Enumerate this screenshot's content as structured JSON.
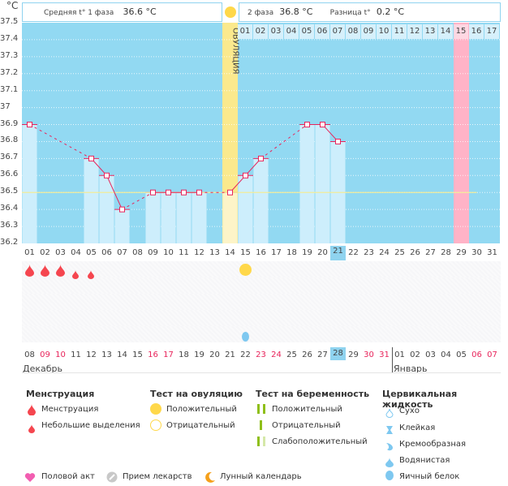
{
  "chart_data": {
    "type": "bar",
    "title": "",
    "ylabel": "°C",
    "ylim": [
      36.2,
      37.5
    ],
    "yticks": [
      "37.5",
      "37.4",
      "37.3",
      "37.2",
      "37.1",
      "37",
      "36.9",
      "36.8",
      "36.7",
      "36.6",
      "36.5",
      "36.4",
      "36.3",
      "36.2"
    ],
    "categories": [
      "01",
      "02",
      "03",
      "04",
      "05",
      "06",
      "07",
      "08",
      "09",
      "10",
      "11",
      "12",
      "13",
      "14",
      "15",
      "16",
      "17",
      "18",
      "19",
      "20",
      "21",
      "22",
      "23",
      "24",
      "25",
      "26",
      "27",
      "28",
      "29",
      "30",
      "31"
    ],
    "values": [
      36.9,
      null,
      null,
      null,
      36.7,
      36.6,
      36.4,
      null,
      36.5,
      36.5,
      36.5,
      36.5,
      null,
      36.5,
      36.6,
      36.7,
      null,
      null,
      36.9,
      36.9,
      36.8,
      null,
      null,
      null,
      null,
      null,
      null,
      null,
      null,
      null,
      null
    ],
    "coverline": 36.5,
    "coverline_until_day": "30",
    "ovulation_day": "14",
    "ovulation_label": "ОВУЛЯЦИЯ",
    "highlight_day": "29",
    "current_day": "21",
    "second_phase_days": [
      "01",
      "02",
      "03",
      "04",
      "05",
      "06",
      "07",
      "08",
      "09",
      "10",
      "11",
      "12",
      "13",
      "14",
      "15",
      "16",
      "17"
    ],
    "dates": [
      {
        "d": "08",
        "we": false
      },
      {
        "d": "09",
        "we": true
      },
      {
        "d": "10",
        "we": true
      },
      {
        "d": "11",
        "we": false
      },
      {
        "d": "12",
        "we": false
      },
      {
        "d": "13",
        "we": false
      },
      {
        "d": "14",
        "we": false
      },
      {
        "d": "15",
        "we": false
      },
      {
        "d": "16",
        "we": true
      },
      {
        "d": "17",
        "we": true
      },
      {
        "d": "18",
        "we": false
      },
      {
        "d": "19",
        "we": false
      },
      {
        "d": "20",
        "we": false
      },
      {
        "d": "21",
        "we": false
      },
      {
        "d": "22",
        "we": false
      },
      {
        "d": "23",
        "we": true
      },
      {
        "d": "24",
        "we": true
      },
      {
        "d": "25",
        "we": false
      },
      {
        "d": "26",
        "we": false
      },
      {
        "d": "27",
        "we": false
      },
      {
        "d": "28",
        "we": false
      },
      {
        "d": "29",
        "we": false
      },
      {
        "d": "30",
        "we": true
      },
      {
        "d": "31",
        "we": true
      },
      {
        "d": "01",
        "we": false
      },
      {
        "d": "02",
        "we": false
      },
      {
        "d": "03",
        "we": false
      },
      {
        "d": "04",
        "we": false
      },
      {
        "d": "05",
        "we": false
      },
      {
        "d": "06",
        "we": true
      },
      {
        "d": "07",
        "we": true
      }
    ],
    "today_date_index": 20,
    "months": [
      {
        "name": "Декабрь",
        "start_index": 0
      },
      {
        "name": "Январь",
        "start_index": 24
      }
    ],
    "menstruation": {
      "01": "heavy",
      "02": "heavy",
      "03": "heavy",
      "04": "light",
      "05": "light"
    },
    "ovulation_test_positive_days": [
      "15"
    ],
    "cervical_fluid": {
      "15": "egg-white"
    }
  },
  "header": {
    "phase1_label": "Средняя t° 1 фаза",
    "phase1_value": "36.6 °C",
    "phase2_label": "2 фаза",
    "phase2_value": "36.8 °C",
    "diff_label": "Разница t°",
    "diff_value": "0.2 °C"
  },
  "colors": {
    "bg": "#92d9f2",
    "bar": "#cdeefc",
    "line": "#e8245b",
    "ovulation": "#fbe98d",
    "highlight": "#ffb3c7",
    "coverline": "#f2ec9a",
    "drop": "#f5464f",
    "sun": "#ffd84a",
    "fluid": "#7ec8f0"
  },
  "legend": {
    "menstruation": {
      "title": "Менструация",
      "items": [
        "Менструация",
        "Небольшие выделения"
      ]
    },
    "ovulation_test": {
      "title": "Тест на овуляцию",
      "items": [
        "Положительный",
        "Отрицательный"
      ]
    },
    "pregnancy_test": {
      "title": "Тест на беременность",
      "items": [
        "Положительный",
        "Отрицательный",
        "Слабоположительный"
      ]
    },
    "cervical": {
      "title": "Цервикальная жидкость",
      "items": [
        "Сухо",
        "Клейкая",
        "Кремообразная",
        "Водянистая",
        "Яичный белок"
      ]
    },
    "bottom": [
      "Половой акт",
      "Прием лекарств",
      "Лунный календарь"
    ]
  }
}
